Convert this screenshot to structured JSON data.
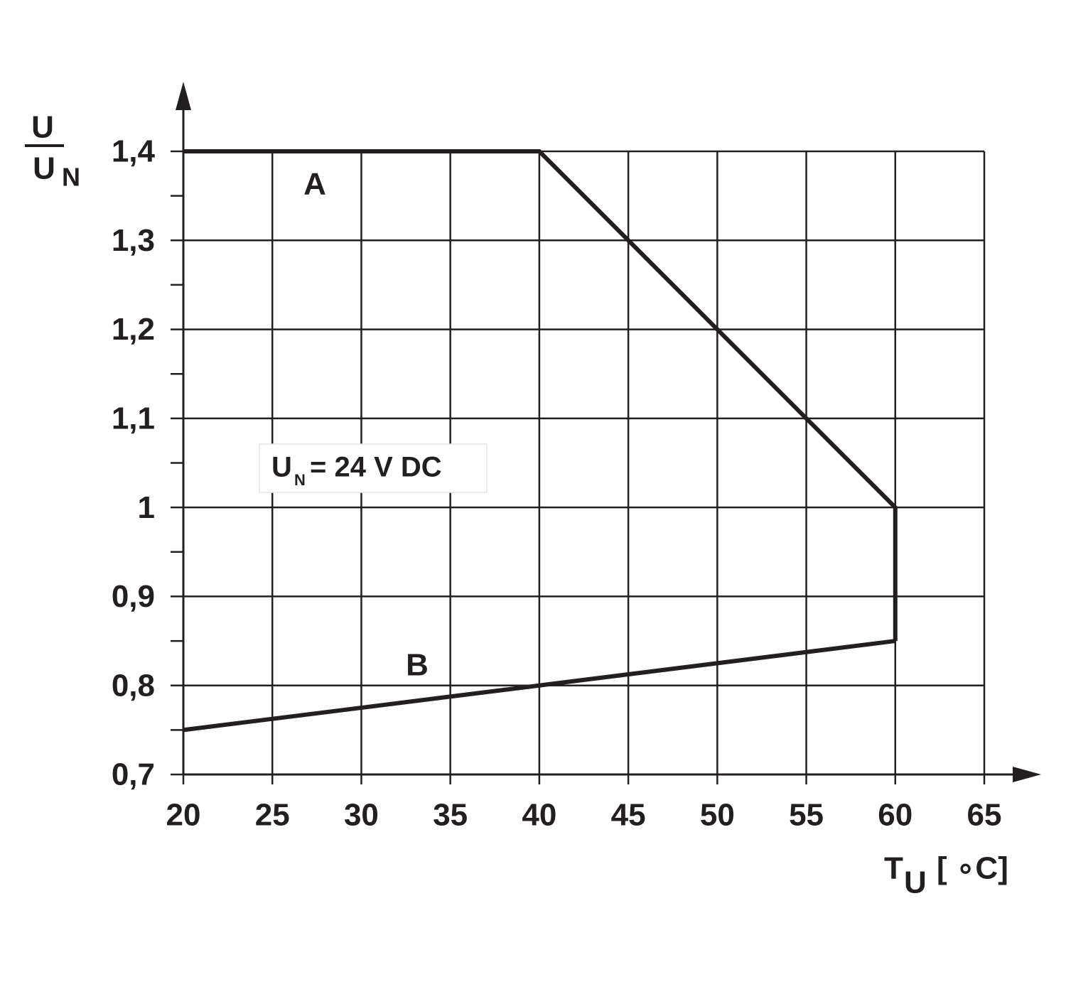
{
  "chart_data": {
    "type": "line",
    "ylabel": {
      "numerator": "U",
      "denominator": "U",
      "denominator_subscript": "N"
    },
    "xlabel": {
      "symbol": "T",
      "subscript": "U",
      "unit": "[ ∘C]"
    },
    "annotation": {
      "symbol": "U",
      "subscript": "N",
      "text": "= 24 V DC"
    },
    "series": [
      {
        "name": "A",
        "color": "#231f20",
        "x": [
          20,
          40,
          60,
          60
        ],
        "values": [
          1.4,
          1.4,
          1.0,
          0.85
        ]
      },
      {
        "name": "B",
        "color": "#231f20",
        "x": [
          20,
          40,
          60
        ],
        "values": [
          0.75,
          0.8,
          0.85
        ]
      }
    ],
    "xlim": [
      20,
      65
    ],
    "xticks": [
      20,
      25,
      30,
      35,
      40,
      45,
      50,
      55,
      60,
      65
    ],
    "ylim": [
      0.7,
      1.4
    ],
    "yticks": [
      {
        "value": 0.7,
        "label": "0,7"
      },
      {
        "value": 0.8,
        "label": "0,8"
      },
      {
        "value": 0.9,
        "label": "0,9"
      },
      1,
      {
        "value": 1.1,
        "label": "1,1"
      },
      {
        "value": 1.2,
        "label": "1,2"
      },
      {
        "value": 1.3,
        "label": "1,3"
      },
      {
        "value": 1.4,
        "label": "1,4"
      }
    ],
    "yminorticks": [
      0.75,
      0.85,
      0.95,
      1.05,
      1.15,
      1.25,
      1.35
    ],
    "grid": true
  }
}
